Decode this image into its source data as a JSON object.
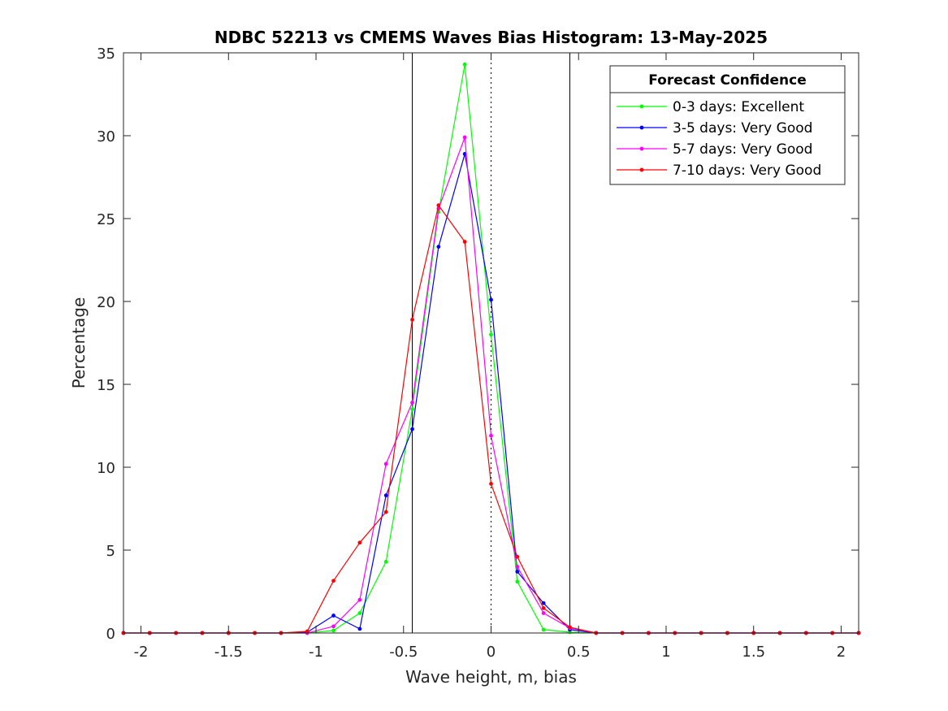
{
  "chart_data": {
    "type": "line",
    "title": "NDBC 52213 vs CMEMS Waves Bias Histogram: 13-May-2025",
    "xlabel": "Wave height, m, bias",
    "ylabel": "Percentage",
    "xlim": [
      -2.1,
      2.1
    ],
    "ylim": [
      0,
      35
    ],
    "xticks": [
      -2,
      -1.5,
      -1,
      -0.5,
      0,
      0.5,
      1,
      1.5,
      2
    ],
    "xtick_labels": [
      "-2",
      "-1.5",
      "-1",
      "-0.5",
      "0",
      "0.5",
      "1",
      "1.5",
      "2"
    ],
    "yticks": [
      0,
      5,
      10,
      15,
      20,
      25,
      30,
      35
    ],
    "ytick_labels": [
      "0",
      "5",
      "10",
      "15",
      "20",
      "25",
      "30",
      "35"
    ],
    "grid": false,
    "reference_lines": [
      {
        "x": -0.45,
        "style": "solid"
      },
      {
        "x": 0,
        "style": "dotted"
      },
      {
        "x": 0.45,
        "style": "solid"
      }
    ],
    "legend": {
      "title": "Forecast Confidence",
      "position": "top-right"
    },
    "x": [
      -2.1,
      -1.95,
      -1.8,
      -1.65,
      -1.5,
      -1.35,
      -1.2,
      -1.05,
      -0.9,
      -0.75,
      -0.6,
      -0.45,
      -0.3,
      -0.15,
      0,
      0.15,
      0.3,
      0.45,
      0.6,
      0.75,
      0.9,
      1.05,
      1.2,
      1.35,
      1.5,
      1.65,
      1.8,
      1.95,
      2.1
    ],
    "series": [
      {
        "name": "0-3 days: Excellent",
        "color": "#00ff00",
        "values": [
          0,
          0,
          0,
          0,
          0,
          0,
          0,
          0,
          0.15,
          1.2,
          4.3,
          13.5,
          25.4,
          34.3,
          18.0,
          3.1,
          0.2,
          0.05,
          0,
          0,
          0,
          0,
          0,
          0,
          0,
          0,
          0,
          0,
          0
        ]
      },
      {
        "name": "3-5 days: Very Good",
        "color": "#0000ff",
        "values": [
          0,
          0,
          0,
          0,
          0,
          0,
          0,
          0.05,
          1.05,
          0.25,
          8.3,
          12.3,
          23.3,
          28.9,
          20.1,
          3.7,
          1.8,
          0.2,
          0,
          0,
          0,
          0,
          0,
          0,
          0,
          0,
          0,
          0,
          0
        ]
      },
      {
        "name": "5-7 days: Very Good",
        "color": "#ff00ff",
        "values": [
          0,
          0,
          0,
          0,
          0,
          0,
          0,
          0,
          0.4,
          2.0,
          10.2,
          13.9,
          25.6,
          29.9,
          11.9,
          4.0,
          1.2,
          0.3,
          0,
          0,
          0,
          0,
          0,
          0,
          0,
          0,
          0,
          0,
          0
        ]
      },
      {
        "name": "7-10 days: Very Good",
        "color": "#ff0000",
        "values": [
          0,
          0,
          0,
          0,
          0,
          0,
          0,
          0.1,
          3.15,
          5.45,
          7.3,
          18.9,
          25.8,
          23.6,
          9.0,
          4.6,
          1.5,
          0.35,
          0,
          0,
          0,
          0,
          0,
          0,
          0,
          0,
          0,
          0,
          0
        ]
      }
    ]
  }
}
